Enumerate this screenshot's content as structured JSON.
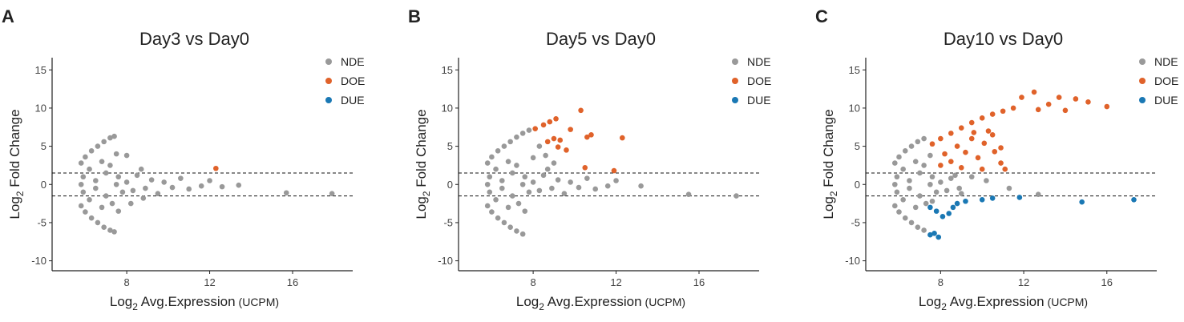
{
  "chart_data": [
    {
      "type": "scatter",
      "label": "A",
      "title": "Day3 vs Day0",
      "xlabel": {
        "text": "Log",
        "sub": "2",
        "rest": " Avg.Expression",
        "unit": "(UCPM)"
      },
      "ylabel": {
        "text": "Log",
        "sub": "2",
        "rest": " Fold Change"
      },
      "xlim": [
        4.4,
        18.9
      ],
      "ylim": [
        -11.3,
        16.6
      ],
      "xticks": [
        8,
        12,
        16
      ],
      "yticks": [
        -10,
        -5,
        0,
        5,
        10,
        15
      ],
      "hlines": [
        1.5,
        -1.5
      ],
      "series": [
        {
          "name": "NDE",
          "color": "#999999",
          "x": [
            5.8,
            6.0,
            6.3,
            6.6,
            6.9,
            7.2,
            7.4,
            5.8,
            6.0,
            6.3,
            6.6,
            6.9,
            7.2,
            7.4,
            5.8,
            5.9,
            5.9,
            6.2,
            6.2,
            6.5,
            6.5,
            6.8,
            6.8,
            7.0,
            7.0,
            7.2,
            7.3,
            7.5,
            7.6,
            7.8,
            8.0,
            8.0,
            8.3,
            8.5,
            8.7,
            8.9,
            9.2,
            9.5,
            9.8,
            10.2,
            10.6,
            11.0,
            11.6,
            12.0,
            12.6,
            13.4,
            15.7,
            17.9,
            7.5,
            7.6,
            8.2,
            8.8
          ],
          "values": [
            2.8,
            3.6,
            4.4,
            5.0,
            5.6,
            6.1,
            6.3,
            -2.8,
            -3.6,
            -4.4,
            -5.0,
            -5.6,
            -6.0,
            -6.2,
            0,
            1,
            -1,
            2,
            -2,
            0.5,
            -0.5,
            3,
            -3,
            1.5,
            -1.5,
            2.5,
            -2.5,
            0,
            1,
            -1,
            3.8,
            0.3,
            -0.8,
            1.2,
            2,
            -0.5,
            0.6,
            -1.2,
            0.3,
            -0.4,
            0.8,
            -0.6,
            -0.2,
            0.5,
            -0.3,
            -0.1,
            -1.1,
            -1.2,
            4,
            -3.5,
            -2.5,
            -1.8
          ]
        },
        {
          "name": "DOE",
          "color": "#e0622a",
          "x": [
            12.3
          ],
          "values": [
            2.1
          ]
        },
        {
          "name": "DUE",
          "color": "#1a78b4",
          "x": [],
          "values": []
        }
      ]
    },
    {
      "type": "scatter",
      "label": "B",
      "title": "Day5 vs Day0",
      "xlabel": {
        "text": "Log",
        "sub": "2",
        "rest": " Avg.Expression",
        "unit": "(UCPM)"
      },
      "ylabel": {
        "text": "Log",
        "sub": "2",
        "rest": " Fold Change"
      },
      "xlim": [
        4.4,
        18.9
      ],
      "ylim": [
        -11.3,
        16.6
      ],
      "xticks": [
        8,
        12,
        16
      ],
      "yticks": [
        -10,
        -5,
        0,
        5,
        10,
        15
      ],
      "hlines": [
        1.5,
        -1.5
      ],
      "series": [
        {
          "name": "NDE",
          "color": "#999999",
          "x": [
            5.8,
            6.0,
            6.3,
            6.6,
            6.9,
            7.2,
            7.5,
            7.8,
            5.8,
            6.0,
            6.3,
            6.6,
            6.9,
            7.2,
            7.5,
            5.8,
            5.9,
            5.9,
            6.2,
            6.2,
            6.5,
            6.5,
            6.8,
            6.8,
            7.0,
            7.0,
            7.2,
            7.3,
            7.5,
            7.6,
            7.8,
            8.0,
            8.0,
            8.3,
            8.5,
            8.7,
            8.9,
            9.2,
            9.5,
            9.8,
            10.2,
            10.6,
            11.0,
            11.6,
            12.0,
            13.2,
            15.5,
            17.8,
            8.3,
            8.6,
            9.0,
            7.6
          ],
          "values": [
            2.8,
            3.6,
            4.4,
            5.0,
            5.6,
            6.2,
            6.7,
            7.1,
            -2.8,
            -3.6,
            -4.4,
            -5.0,
            -5.6,
            -6.1,
            -6.5,
            0,
            1,
            -1,
            2,
            -2,
            0.5,
            -0.5,
            3,
            -3,
            1.5,
            -1.5,
            2.5,
            -2.5,
            0,
            1,
            -1,
            3.5,
            0.3,
            -0.8,
            1.2,
            2,
            -0.5,
            0.6,
            -1.2,
            0.3,
            -0.4,
            0.8,
            -0.6,
            -0.2,
            0.5,
            -0.2,
            -1.3,
            -1.5,
            5,
            3.8,
            2.8,
            -3.5
          ]
        },
        {
          "name": "DOE",
          "color": "#e0622a",
          "x": [
            8.1,
            8.5,
            8.8,
            9.1,
            8.7,
            9.0,
            9.3,
            9.6,
            9.8,
            10.3,
            10.6,
            10.8,
            12.3,
            10.5,
            11.9,
            9.2
          ],
          "values": [
            7.3,
            7.8,
            8.2,
            8.6,
            5.6,
            6.0,
            5.8,
            4.5,
            7.2,
            9.7,
            6.2,
            6.5,
            6.1,
            2.2,
            1.8,
            4.9
          ]
        },
        {
          "name": "DUE",
          "color": "#1a78b4",
          "x": [],
          "values": []
        }
      ]
    },
    {
      "type": "scatter",
      "label": "C",
      "title": "Day10 vs Day0",
      "xlabel": {
        "text": "Log",
        "sub": "2",
        "rest": " Avg.Expression",
        "unit": "(UCPM)"
      },
      "ylabel": {
        "text": "Log",
        "sub": "2",
        "rest": " Fold Change"
      },
      "xlim": [
        4.4,
        18.4
      ],
      "ylim": [
        -11.3,
        16.6
      ],
      "xticks": [
        8,
        12,
        16
      ],
      "yticks": [
        -10,
        -5,
        0,
        5,
        10,
        15
      ],
      "hlines": [
        1.5,
        -1.5
      ],
      "series": [
        {
          "name": "NDE",
          "color": "#999999",
          "x": [
            5.8,
            6.0,
            6.3,
            6.6,
            6.9,
            7.2,
            5.8,
            6.0,
            6.3,
            6.6,
            6.9,
            7.2,
            5.8,
            5.9,
            5.9,
            6.2,
            6.2,
            6.5,
            6.5,
            6.8,
            6.8,
            7.0,
            7.0,
            7.2,
            7.3,
            7.5,
            7.6,
            7.8,
            8.0,
            8.3,
            8.5,
            8.7,
            8.9,
            9.0,
            9.5,
            10.2,
            11.3,
            12.7,
            7.5,
            7.6
          ],
          "values": [
            2.8,
            3.6,
            4.4,
            5.0,
            5.6,
            6.0,
            -2.8,
            -3.6,
            -4.4,
            -5.0,
            -5.6,
            -6.0,
            0,
            1,
            -1,
            2,
            -2,
            0.5,
            -0.5,
            3,
            -3,
            1.5,
            -1.5,
            2.5,
            -2.5,
            0,
            1,
            -1,
            0.3,
            -0.8,
            0.8,
            1.2,
            -0.5,
            -1.2,
            1,
            0.5,
            -0.5,
            -1.3,
            3.8,
            -2.2
          ]
        },
        {
          "name": "DOE",
          "color": "#e0622a",
          "x": [
            7.6,
            8.0,
            8.5,
            9.0,
            9.5,
            10.0,
            10.5,
            11.0,
            11.5,
            11.9,
            12.5,
            12.7,
            13.2,
            13.7,
            14.0,
            14.5,
            15.1,
            16.0,
            8.2,
            8.5,
            8.8,
            9.2,
            9.5,
            9.8,
            10.1,
            10.3,
            10.6,
            10.9,
            10.9,
            11.1,
            8.0,
            9.0,
            10.0,
            9.6,
            10.5
          ],
          "values": [
            5.3,
            6.0,
            6.7,
            7.4,
            8.1,
            8.7,
            9.2,
            9.6,
            10.0,
            11.4,
            12.1,
            9.8,
            10.5,
            11.4,
            9.7,
            11.2,
            10.8,
            10.2,
            4.0,
            3.0,
            5.0,
            4.2,
            6.0,
            3.5,
            5.4,
            7.0,
            4.3,
            2.8,
            4.8,
            2.0,
            2.5,
            2.2,
            2.0,
            6.8,
            6.5
          ]
        },
        {
          "name": "DUE",
          "color": "#1a78b4",
          "x": [
            7.5,
            7.8,
            8.1,
            8.4,
            8.6,
            7.7,
            7.9,
            7.5,
            9.2,
            10.0,
            10.5,
            11.8,
            14.8,
            17.3,
            8.8
          ],
          "values": [
            -3.0,
            -3.5,
            -4.2,
            -3.8,
            -3.0,
            -6.4,
            -6.9,
            -6.6,
            -2.2,
            -2.0,
            -1.8,
            -1.7,
            -2.3,
            -2.0,
            -2.5
          ]
        }
      ]
    }
  ]
}
